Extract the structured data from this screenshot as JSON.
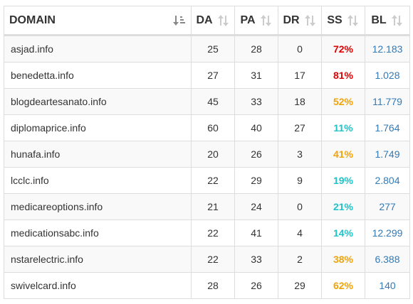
{
  "table": {
    "headers": {
      "domain": "DOMAIN",
      "da": "DA",
      "pa": "PA",
      "dr": "DR",
      "ss": "SS",
      "bl": "BL"
    },
    "rows": [
      {
        "domain": "asjad.info",
        "da": "25",
        "pa": "28",
        "dr": "0",
        "ss": "72%",
        "ss_color": "#e00000",
        "bl": "12.183"
      },
      {
        "domain": "benedetta.info",
        "da": "27",
        "pa": "31",
        "dr": "17",
        "ss": "81%",
        "ss_color": "#e00000",
        "bl": "1.028"
      },
      {
        "domain": "blogdeartesanato.info",
        "da": "45",
        "pa": "33",
        "dr": "18",
        "ss": "52%",
        "ss_color": "#f0a30a",
        "bl": "11.779"
      },
      {
        "domain": "diplomaprice.info",
        "da": "60",
        "pa": "40",
        "dr": "27",
        "ss": "11%",
        "ss_color": "#1fc3c8",
        "bl": "1.764"
      },
      {
        "domain": "hunafa.info",
        "da": "20",
        "pa": "26",
        "dr": "3",
        "ss": "41%",
        "ss_color": "#f0a30a",
        "bl": "1.749"
      },
      {
        "domain": "lcclc.info",
        "da": "22",
        "pa": "29",
        "dr": "9",
        "ss": "19%",
        "ss_color": "#1fc3c8",
        "bl": "2.804"
      },
      {
        "domain": "medicareoptions.info",
        "da": "21",
        "pa": "24",
        "dr": "0",
        "ss": "21%",
        "ss_color": "#1fc3c8",
        "bl": "277"
      },
      {
        "domain": "medicationsabc.info",
        "da": "22",
        "pa": "41",
        "dr": "4",
        "ss": "14%",
        "ss_color": "#1fc3c8",
        "bl": "12.299"
      },
      {
        "domain": "nstarelectric.info",
        "da": "22",
        "pa": "33",
        "dr": "2",
        "ss": "38%",
        "ss_color": "#f0a30a",
        "bl": "6.388"
      },
      {
        "domain": "swivelcard.info",
        "da": "28",
        "pa": "26",
        "dr": "29",
        "ss": "62%",
        "ss_color": "#f0a30a",
        "bl": "140"
      }
    ]
  },
  "icons": {
    "domain_sort": "sort-alpha-active-icon",
    "column_sort": "sort-both-icon"
  }
}
